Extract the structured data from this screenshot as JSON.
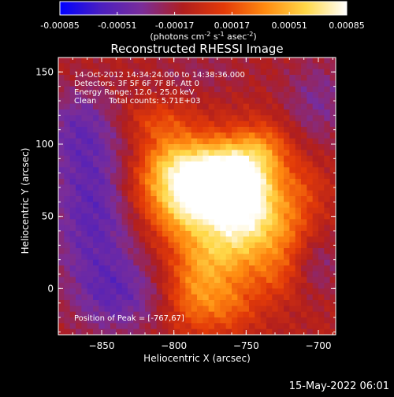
{
  "chart_data": {
    "type": "heatmap",
    "title": "Reconstructed RHESSI Image",
    "xlabel": "Heliocentric X (arcsec)",
    "ylabel": "Heliocentric Y (arcsec)",
    "xlim": [
      -880,
      -688
    ],
    "ylim": [
      -32,
      160
    ],
    "x_ticks": [
      -850,
      -800,
      -750,
      -700
    ],
    "y_ticks": [
      0,
      50,
      100,
      150
    ],
    "colorbar": {
      "ticks": [
        -0.00085,
        -0.00051,
        -0.00017,
        0.00017,
        0.00051,
        0.00085
      ],
      "tick_labels": [
        "-0.00085",
        "-0.00051",
        "-0.00017",
        "0.00017",
        "0.00051",
        "0.00085"
      ],
      "label": "(photons cm",
      "label_sup1": "-2",
      "label_mid1": " s",
      "label_sup2": "-1",
      "label_mid2": " asec",
      "label_sup3": "-2",
      "label_end": ")",
      "colors": [
        "#0000ff",
        "#4b1fc0",
        "#7a2d9a",
        "#b01e1e",
        "#e33a08",
        "#ff8a10",
        "#ffd848",
        "#ffffff"
      ]
    },
    "annotations": [
      "14-Oct-2012 14:34:24.000 to 14:38:36.000",
      "Detectors: 3F 5F 6F 7F 8F, Att 0",
      "Energy Range: 12.0 - 25.0 keV",
      "Clean     Total counts: 5.71E+03"
    ],
    "peak_label": "Position of Peak = [-767,67]",
    "peak": [
      -767,
      67
    ],
    "timestamp": "15-May-2022 06:01",
    "min_value": -0.00085,
    "max_value": 0.00085,
    "blobs": [
      {
        "x": -770,
        "y": 67,
        "amp": 0.00085,
        "sx": 17,
        "sy": 14
      },
      {
        "x": -784,
        "y": 82,
        "amp": 0.00048,
        "sx": 20,
        "sy": 18
      },
      {
        "x": -758,
        "y": 86,
        "amp": 0.0004,
        "sx": 16,
        "sy": 15
      },
      {
        "x": -796,
        "y": 55,
        "amp": 0.00045,
        "sx": 18,
        "sy": 18
      },
      {
        "x": -752,
        "y": 44,
        "amp": 0.0005,
        "sx": 16,
        "sy": 20
      },
      {
        "x": -773,
        "y": 24,
        "amp": 0.00042,
        "sx": 18,
        "sy": 18
      },
      {
        "x": -743,
        "y": 64,
        "amp": 0.00038,
        "sx": 14,
        "sy": 18
      },
      {
        "x": -804,
        "y": 88,
        "amp": 0.0003,
        "sx": 15,
        "sy": 14
      },
      {
        "x": -737,
        "y": 96,
        "amp": 0.00034,
        "sx": 14,
        "sy": 14
      },
      {
        "x": -786,
        "y": -6,
        "amp": 0.00034,
        "sx": 14,
        "sy": 18
      },
      {
        "x": -760,
        "y": -12,
        "amp": 0.00026,
        "sx": 14,
        "sy": 14
      },
      {
        "x": -722,
        "y": 40,
        "amp": 0.0003,
        "sx": 14,
        "sy": 16
      },
      {
        "x": -728,
        "y": 10,
        "amp": 0.00024,
        "sx": 14,
        "sy": 14
      },
      {
        "x": -712,
        "y": 70,
        "amp": 0.0002,
        "sx": 12,
        "sy": 14
      },
      {
        "x": -812,
        "y": 116,
        "amp": 0.00022,
        "sx": 16,
        "sy": 10
      },
      {
        "x": -822,
        "y": 70,
        "amp": 0.00014,
        "sx": 14,
        "sy": 14
      },
      {
        "x": -856,
        "y": 52,
        "amp": -0.0004,
        "sx": 22,
        "sy": 38
      },
      {
        "x": -838,
        "y": -6,
        "amp": -0.0003,
        "sx": 22,
        "sy": 20
      },
      {
        "x": -866,
        "y": 112,
        "amp": -0.00026,
        "sx": 18,
        "sy": 22
      },
      {
        "x": -700,
        "y": 130,
        "amp": -0.00024,
        "sx": 18,
        "sy": 22
      },
      {
        "x": -703,
        "y": 16,
        "amp": -0.0002,
        "sx": 14,
        "sy": 16
      },
      {
        "x": -780,
        "y": 150,
        "amp": -0.00012,
        "sx": 25,
        "sy": 12
      }
    ]
  }
}
